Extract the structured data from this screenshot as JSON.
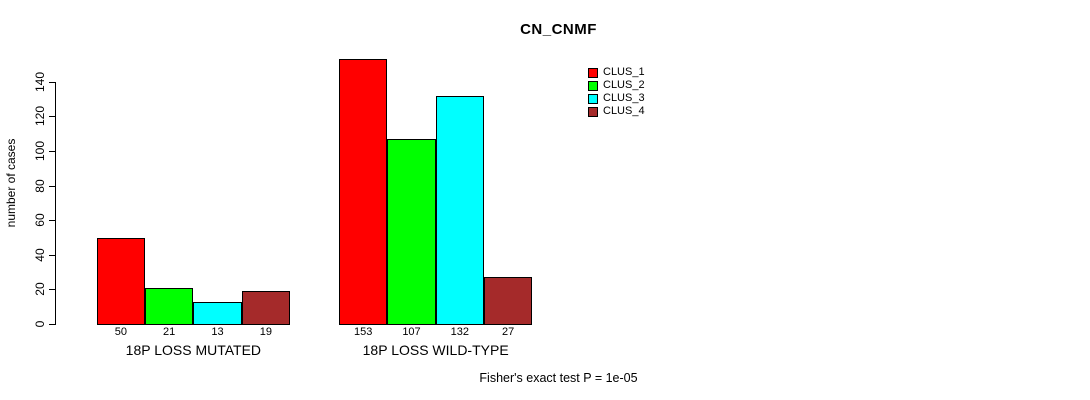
{
  "chart_data": {
    "type": "bar",
    "title": "CN_CNMF",
    "ylabel": "number of cases",
    "xlabel": "",
    "categories": [
      "18P LOSS MUTATED",
      "18P LOSS WILD-TYPE"
    ],
    "series": [
      {
        "name": "CLUS_1",
        "color": "#ff0000",
        "values": [
          50,
          153
        ]
      },
      {
        "name": "CLUS_2",
        "color": "#00ff00",
        "values": [
          21,
          107
        ]
      },
      {
        "name": "CLUS_3",
        "color": "#00ffff",
        "values": [
          13,
          132
        ]
      },
      {
        "name": "CLUS_4",
        "color": "#a52a2a",
        "values": [
          19,
          27
        ]
      }
    ],
    "y_ticks": [
      0,
      20,
      40,
      60,
      80,
      100,
      120,
      140
    ],
    "ylim": [
      0,
      145
    ],
    "bar_value_labels": [
      [
        50,
        21,
        13,
        19
      ],
      [
        153,
        107,
        132,
        27
      ]
    ],
    "legend_position": "top-right",
    "legend_entries": [
      "CLUS_1",
      "CLUS_2",
      "CLUS_3",
      "CLUS_4"
    ],
    "grid": false,
    "annotation": "Fisher's exact test P = 1e-05"
  }
}
